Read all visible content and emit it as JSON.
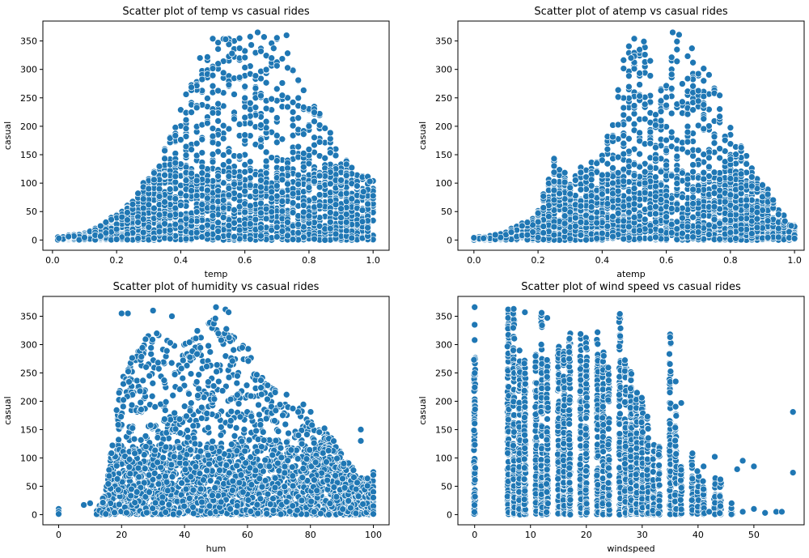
{
  "chart_data": [
    {
      "type": "scatter",
      "title": "Scatter plot of temp vs casual rides",
      "xlabel": "temp",
      "ylabel": "casual",
      "xlim": [
        -0.03,
        1.05
      ],
      "ylim": [
        -18,
        385
      ],
      "xticks": [
        0.0,
        0.2,
        0.4,
        0.6,
        0.8,
        1.0
      ],
      "xtick_labels": [
        "0.0",
        "0.2",
        "0.4",
        "0.6",
        "0.8",
        "1.0"
      ],
      "yticks": [
        0,
        50,
        100,
        150,
        200,
        250,
        300,
        350
      ],
      "ytick_labels": [
        "0",
        "50",
        "100",
        "150",
        "200",
        "250",
        "300",
        "350"
      ],
      "grid": false,
      "color": "#1f77b4",
      "envelope": [
        [
          0.02,
          5
        ],
        [
          0.1,
          12
        ],
        [
          0.15,
          25
        ],
        [
          0.2,
          45
        ],
        [
          0.25,
          70
        ],
        [
          0.3,
          110
        ],
        [
          0.35,
          160
        ],
        [
          0.4,
          235
        ],
        [
          0.45,
          300
        ],
        [
          0.5,
          355
        ],
        [
          0.55,
          355
        ],
        [
          0.6,
          360
        ],
        [
          0.65,
          365
        ],
        [
          0.7,
          362
        ],
        [
          0.75,
          315
        ],
        [
          0.8,
          255
        ],
        [
          0.85,
          210
        ],
        [
          0.9,
          150
        ],
        [
          0.95,
          120
        ],
        [
          1.0,
          105
        ]
      ],
      "highlights": [
        [
          0.5,
          354
        ],
        [
          0.54,
          353
        ],
        [
          0.64,
          365
        ],
        [
          0.66,
          357
        ],
        [
          0.73,
          360
        ],
        [
          0.62,
          343
        ],
        [
          0.69,
          337
        ],
        [
          0.46,
          320
        ],
        [
          0.56,
          328
        ],
        [
          0.99,
          103
        ],
        [
          0.97,
          85
        ],
        [
          0.02,
          3
        ],
        [
          0.05,
          6
        ]
      ]
    },
    {
      "type": "scatter",
      "title": "Scatter plot of atemp vs casual rides",
      "xlabel": "atemp",
      "ylabel": "casual",
      "xlim": [
        -0.05,
        1.03
      ],
      "ylim": [
        -18,
        385
      ],
      "xticks": [
        0.0,
        0.2,
        0.4,
        0.6,
        0.8,
        1.0
      ],
      "xtick_labels": [
        "0.0",
        "0.2",
        "0.4",
        "0.6",
        "0.8",
        "1.0"
      ],
      "yticks": [
        0,
        50,
        100,
        150,
        200,
        250,
        300,
        350
      ],
      "ytick_labels": [
        "0",
        "50",
        "100",
        "150",
        "200",
        "250",
        "300",
        "350"
      ],
      "grid": false,
      "color": "#1f77b4",
      "envelope": [
        [
          0.0,
          4
        ],
        [
          0.1,
          12
        ],
        [
          0.15,
          30
        ],
        [
          0.2,
          45
        ],
        [
          0.23,
          95
        ],
        [
          0.25,
          140
        ],
        [
          0.3,
          110
        ],
        [
          0.35,
          140
        ],
        [
          0.4,
          155
        ],
        [
          0.44,
          240
        ],
        [
          0.47,
          330
        ],
        [
          0.5,
          355
        ],
        [
          0.53,
          350
        ],
        [
          0.57,
          255
        ],
        [
          0.6,
          295
        ],
        [
          0.62,
          365
        ],
        [
          0.64,
          360
        ],
        [
          0.7,
          330
        ],
        [
          0.76,
          270
        ],
        [
          0.8,
          200
        ],
        [
          0.84,
          160
        ],
        [
          0.88,
          120
        ],
        [
          0.92,
          80
        ],
        [
          0.97,
          35
        ],
        [
          1.0,
          25
        ]
      ],
      "highlights": [
        [
          0.62,
          365
        ],
        [
          0.64,
          361
        ],
        [
          0.5,
          354
        ],
        [
          0.53,
          349
        ],
        [
          0.55,
          315
        ],
        [
          0.68,
          337
        ],
        [
          0.49,
          320
        ],
        [
          0.25,
          143
        ],
        [
          0.97,
          33
        ],
        [
          0.99,
          25
        ],
        [
          0.0,
          4
        ],
        [
          0.03,
          3
        ]
      ]
    },
    {
      "type": "scatter",
      "title": "Scatter plot of humidity vs casual rides",
      "xlabel": "hum",
      "ylabel": "casual",
      "xlim": [
        -5,
        105
      ],
      "ylim": [
        -18,
        385
      ],
      "xticks": [
        0,
        20,
        40,
        60,
        80,
        100
      ],
      "xtick_labels": [
        "0",
        "20",
        "40",
        "60",
        "80",
        "100"
      ],
      "yticks": [
        0,
        50,
        100,
        150,
        200,
        250,
        300,
        350
      ],
      "ytick_labels": [
        "0",
        "50",
        "100",
        "150",
        "200",
        "250",
        "300",
        "350"
      ],
      "grid": false,
      "color": "#1f77b4",
      "envelope": [
        [
          12,
          5
        ],
        [
          15,
          40
        ],
        [
          18,
          180
        ],
        [
          20,
          250
        ],
        [
          25,
          300
        ],
        [
          30,
          330
        ],
        [
          35,
          310
        ],
        [
          40,
          300
        ],
        [
          45,
          330
        ],
        [
          50,
          360
        ],
        [
          55,
          320
        ],
        [
          60,
          300
        ],
        [
          65,
          260
        ],
        [
          70,
          230
        ],
        [
          75,
          200
        ],
        [
          80,
          190
        ],
        [
          85,
          150
        ],
        [
          90,
          110
        ],
        [
          95,
          70
        ],
        [
          100,
          60
        ]
      ],
      "highlights": [
        [
          0,
          10
        ],
        [
          0,
          5
        ],
        [
          0,
          1
        ],
        [
          8,
          17
        ],
        [
          10,
          20
        ],
        [
          13,
          7
        ],
        [
          14,
          3
        ],
        [
          15,
          1
        ],
        [
          20,
          355
        ],
        [
          22,
          355
        ],
        [
          30,
          360
        ],
        [
          36,
          350
        ],
        [
          50,
          366
        ],
        [
          53,
          362
        ],
        [
          54,
          357
        ],
        [
          100,
          75
        ],
        [
          100,
          70
        ],
        [
          100,
          40
        ],
        [
          100,
          30
        ],
        [
          100,
          15
        ],
        [
          100,
          5
        ],
        [
          100,
          1
        ],
        [
          96,
          150
        ],
        [
          96,
          130
        ]
      ]
    },
    {
      "type": "scatter",
      "title": "Scatter plot of wind speed vs casual rides",
      "xlabel": "windspeed",
      "ylabel": "casual",
      "xlim": [
        -3,
        59
      ],
      "ylim": [
        -18,
        385
      ],
      "xticks": [
        0,
        10,
        20,
        30,
        40,
        50
      ],
      "xtick_labels": [
        "0",
        "10",
        "20",
        "30",
        "40",
        "50"
      ],
      "yticks": [
        0,
        50,
        100,
        150,
        200,
        250,
        300,
        350
      ],
      "ytick_labels": [
        "0",
        "50",
        "100",
        "150",
        "200",
        "250",
        "300",
        "350"
      ],
      "grid": false,
      "color": "#1f77b4",
      "columns": [
        [
          0,
          280
        ],
        [
          6,
          360
        ],
        [
          7,
          362
        ],
        [
          8,
          300
        ],
        [
          9,
          290
        ],
        [
          11,
          290
        ],
        [
          12,
          355
        ],
        [
          13,
          290
        ],
        [
          15,
          300
        ],
        [
          16,
          305
        ],
        [
          17,
          325
        ],
        [
          19,
          325
        ],
        [
          20,
          325
        ],
        [
          22,
          325
        ],
        [
          23,
          290
        ],
        [
          24,
          260
        ],
        [
          26,
          355
        ],
        [
          27,
          275
        ],
        [
          28,
          255
        ],
        [
          29,
          235
        ],
        [
          30,
          215
        ],
        [
          31,
          175
        ],
        [
          32,
          125
        ],
        [
          33,
          120
        ],
        [
          35,
          320
        ],
        [
          36,
          195
        ],
        [
          37,
          85
        ],
        [
          39,
          105
        ],
        [
          40,
          80
        ],
        [
          41,
          60
        ],
        [
          43,
          65
        ],
        [
          44,
          60
        ],
        [
          46,
          20
        ]
      ],
      "highlights": [
        [
          0,
          366
        ],
        [
          0,
          335
        ],
        [
          0,
          308
        ],
        [
          6,
          362
        ],
        [
          7,
          363
        ],
        [
          9,
          357
        ],
        [
          12,
          356
        ],
        [
          13,
          347
        ],
        [
          26,
          354
        ],
        [
          35,
          318
        ],
        [
          35,
          313
        ],
        [
          36,
          235
        ],
        [
          37,
          197
        ],
        [
          39,
          108
        ],
        [
          41,
          85
        ],
        [
          43,
          102
        ],
        [
          44,
          62
        ],
        [
          47,
          80
        ],
        [
          48,
          95
        ],
        [
          50,
          85
        ],
        [
          50,
          10
        ],
        [
          52,
          3
        ],
        [
          54,
          5
        ],
        [
          55,
          5
        ],
        [
          57,
          181
        ],
        [
          57,
          74
        ],
        [
          46,
          20
        ],
        [
          48,
          5
        ],
        [
          44,
          15
        ],
        [
          42,
          5
        ]
      ]
    }
  ]
}
